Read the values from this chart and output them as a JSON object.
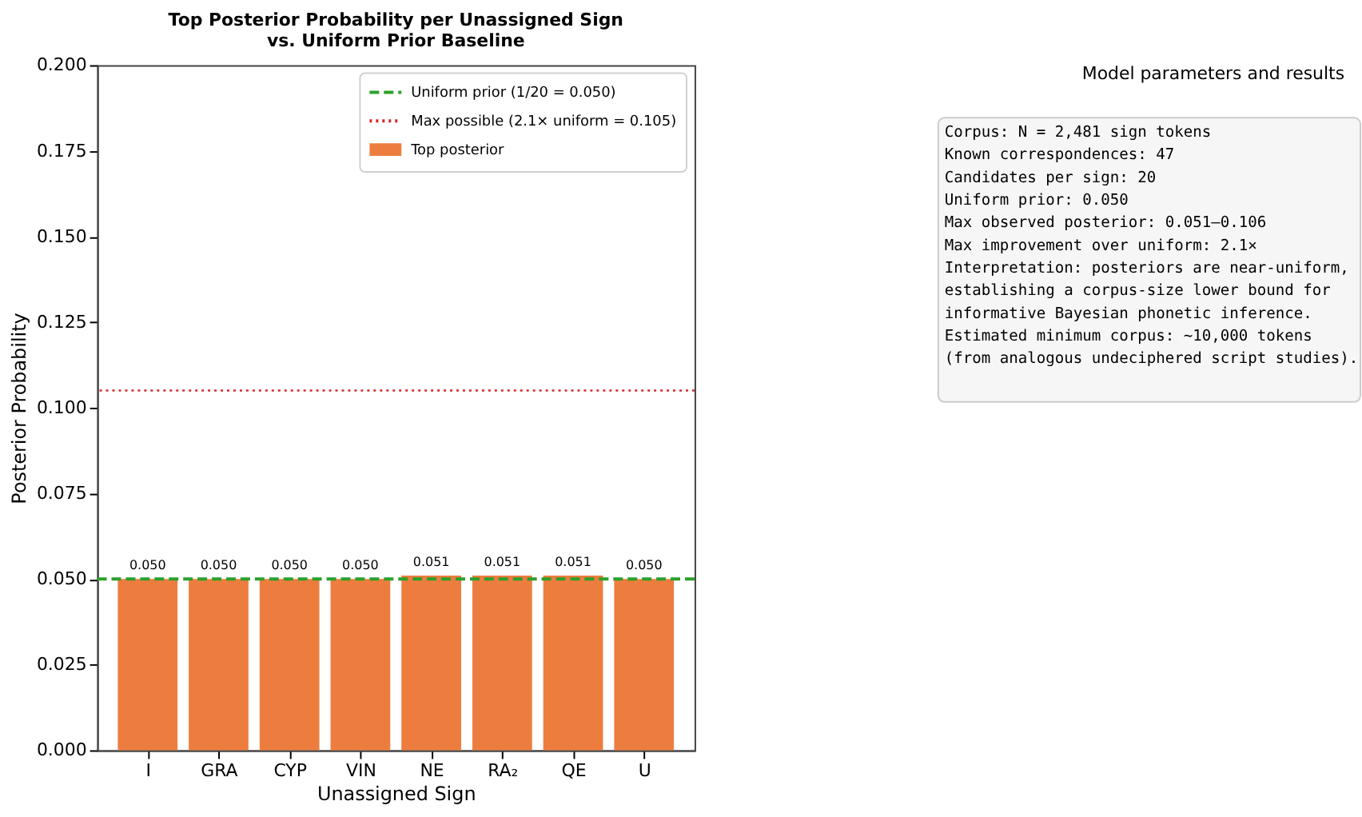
{
  "chart_data": {
    "type": "bar",
    "title": "Top Posterior Probability per Unassigned Sign\nvs. Uniform Prior Baseline",
    "xlabel": "Unassigned Sign",
    "ylabel": "Posterior Probability",
    "categories": [
      "I",
      "GRA",
      "CYP",
      "VIN",
      "NE",
      "RA₂",
      "QE",
      "U"
    ],
    "series": [
      {
        "name": "Top posterior",
        "color": "#ed7d3f",
        "values": [
          0.05,
          0.05,
          0.05,
          0.05,
          0.051,
          0.051,
          0.051,
          0.05
        ],
        "value_labels": [
          "0.050",
          "0.050",
          "0.050",
          "0.050",
          "0.051",
          "0.051",
          "0.051",
          "0.050"
        ]
      }
    ],
    "ylim": [
      0,
      0.2
    ],
    "yticks": [
      {
        "value": 0,
        "label": "0.000"
      },
      {
        "value": 0.025,
        "label": "0.025"
      },
      {
        "value": 0.05,
        "label": "0.050"
      },
      {
        "value": 0.075,
        "label": "0.075"
      },
      {
        "value": 0.1,
        "label": "0.100"
      },
      {
        "value": 0.125,
        "label": "0.125"
      },
      {
        "value": 0.15,
        "label": "0.150"
      },
      {
        "value": 0.175,
        "label": "0.175"
      },
      {
        "value": 0.2,
        "label": "0.200"
      }
    ],
    "ref_lines": [
      {
        "axis": "y",
        "value": 0.05,
        "label": "Uniform prior (1/20 = 0.050)",
        "color": "#2ca02c",
        "line_style": "dashed"
      },
      {
        "axis": "y",
        "value": 0.105,
        "label": "Max possible (2.1× uniform = 0.105)",
        "color": "#d62728",
        "line_style": "dotted"
      }
    ],
    "legend": "top right",
    "grid": false,
    "annotations": [
      "Model parameters and results",
      "Corpus: N = 2,481 sign tokens\nKnown correspondences: 47\nCandidates per sign: 20\nUniform prior: 0.050\nMax observed posterior: 0.051–0.106\nMax improvement over uniform: 2.1×\n\nInterpretation: posteriors are near-uniform,\nestablishing a corpus-size lower bound for\ninformative Bayesian phonetic inference.\nEstimated minimum corpus: ~10,000 tokens\n(from analogous undeciphered script studies)."
    ]
  }
}
